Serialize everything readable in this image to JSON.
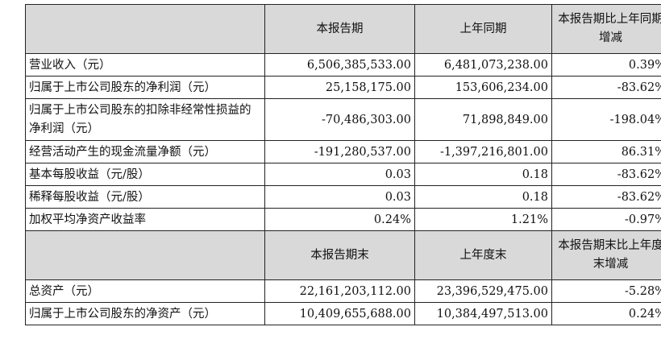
{
  "table": {
    "header1": {
      "c1": "本报告期",
      "c2": "上年同期",
      "c3": "本报告期比上年同期增减"
    },
    "rows1": [
      {
        "label": "营业收入（元）",
        "v1": "6,506,385,533.00",
        "v2": "6,481,073,238.00",
        "v3": "0.39%"
      },
      {
        "label": "归属于上市公司股东的净利润（元）",
        "v1": "25,158,175.00",
        "v2": "153,606,234.00",
        "v3": "-83.62%"
      },
      {
        "label": "归属于上市公司股东的扣除非经常性损益的净利润（元）",
        "v1": "-70,486,303.00",
        "v2": "71,898,849.00",
        "v3": "-198.04%"
      },
      {
        "label": "经营活动产生的现金流量净额（元）",
        "v1": "-191,280,537.00",
        "v2": "-1,397,216,801.00",
        "v3": "86.31%"
      },
      {
        "label": "基本每股收益（元/股）",
        "v1": "0.03",
        "v2": "0.18",
        "v3": "-83.62%"
      },
      {
        "label": "稀释每股收益（元/股）",
        "v1": "0.03",
        "v2": "0.18",
        "v3": "-83.62%"
      },
      {
        "label": "加权平均净资产收益率",
        "v1": "0.24%",
        "v2": "1.21%",
        "v3": "-0.97%"
      }
    ],
    "header2": {
      "c1": "本报告期末",
      "c2": "上年度末",
      "c3": "本报告期末比上年度末增减"
    },
    "rows2": [
      {
        "label": "总资产（元）",
        "v1": "22,161,203,112.00",
        "v2": "23,396,529,475.00",
        "v3": "-5.28%"
      },
      {
        "label": "归属于上市公司股东的净资产（元）",
        "v1": "10,409,655,688.00",
        "v2": "10,384,497,513.00",
        "v3": "0.24%"
      }
    ]
  }
}
